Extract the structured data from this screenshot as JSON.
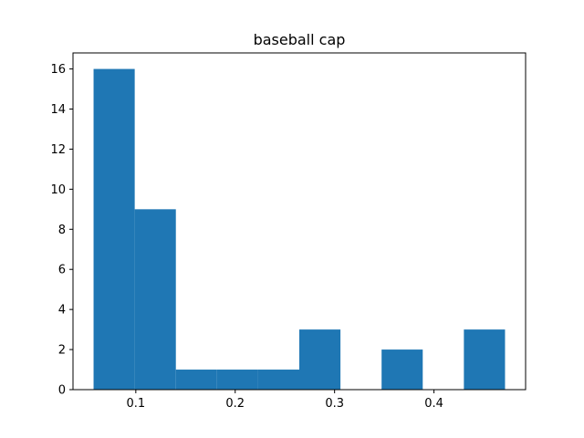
{
  "chart_data": {
    "type": "bar",
    "title": "baseball cap",
    "xlabel": "",
    "ylabel": "",
    "bins": [
      {
        "x0": 0.0575,
        "x1": 0.0989,
        "count": 16
      },
      {
        "x0": 0.0989,
        "x1": 0.1403,
        "count": 9
      },
      {
        "x0": 0.1403,
        "x1": 0.1817,
        "count": 1
      },
      {
        "x0": 0.1817,
        "x1": 0.2231,
        "count": 1
      },
      {
        "x0": 0.2231,
        "x1": 0.2645,
        "count": 1
      },
      {
        "x0": 0.2645,
        "x1": 0.3059,
        "count": 3
      },
      {
        "x0": 0.3059,
        "x1": 0.3473,
        "count": 0
      },
      {
        "x0": 0.3473,
        "x1": 0.3887,
        "count": 2
      },
      {
        "x0": 0.3887,
        "x1": 0.4301,
        "count": 0
      },
      {
        "x0": 0.4301,
        "x1": 0.4715,
        "count": 3
      }
    ],
    "xlim": [
      0.0368,
      0.4922
    ],
    "ylim": [
      0,
      16.8
    ],
    "xticks": [
      0.1,
      0.2,
      0.3,
      0.4
    ],
    "xtick_labels": [
      "0.1",
      "0.2",
      "0.3",
      "0.4"
    ],
    "yticks": [
      0,
      2,
      4,
      6,
      8,
      10,
      12,
      14,
      16
    ],
    "ytick_labels": [
      "0",
      "2",
      "4",
      "6",
      "8",
      "10",
      "12",
      "14",
      "16"
    ],
    "grid": false,
    "bar_color": "#1f77b4"
  }
}
